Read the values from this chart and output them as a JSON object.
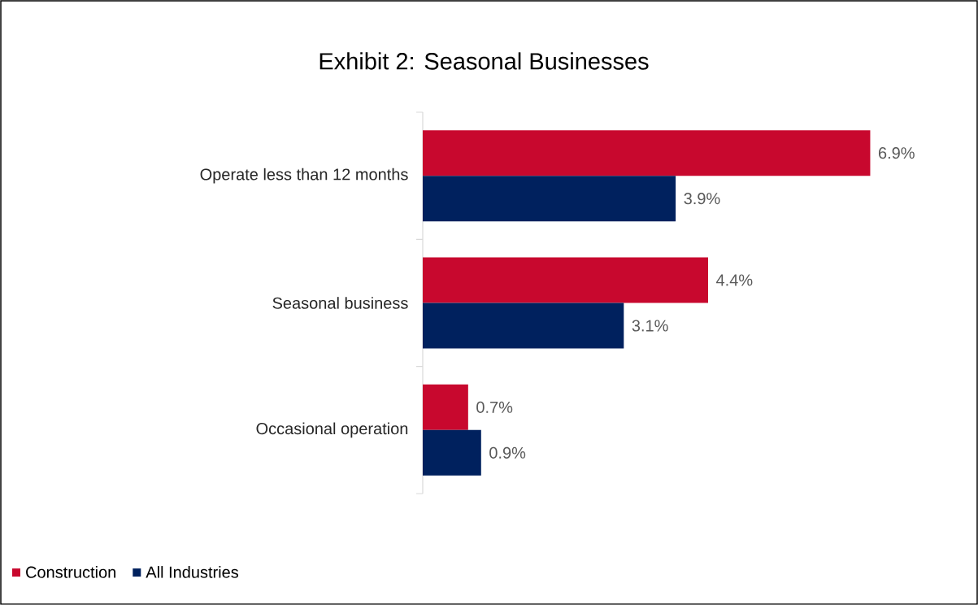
{
  "chart_data": {
    "type": "bar",
    "orientation": "horizontal",
    "title": "Exhibit 2: Seasonal Businesses",
    "categories": [
      "Operate less than 12 months",
      "Seasonal business",
      "Occasional operation"
    ],
    "series": [
      {
        "name": "Construction",
        "color": "#c8082e",
        "values": [
          6.9,
          4.4,
          0.7
        ],
        "value_labels": [
          "6.9%",
          "4.4%",
          "0.7%"
        ]
      },
      {
        "name": "All Industries",
        "color": "#00215e",
        "values": [
          3.9,
          3.1,
          0.9
        ],
        "value_labels": [
          "3.9%",
          "3.1%",
          "0.9%"
        ]
      }
    ],
    "tick_labels": "y",
    "grid": false,
    "legend": "bottom left"
  }
}
